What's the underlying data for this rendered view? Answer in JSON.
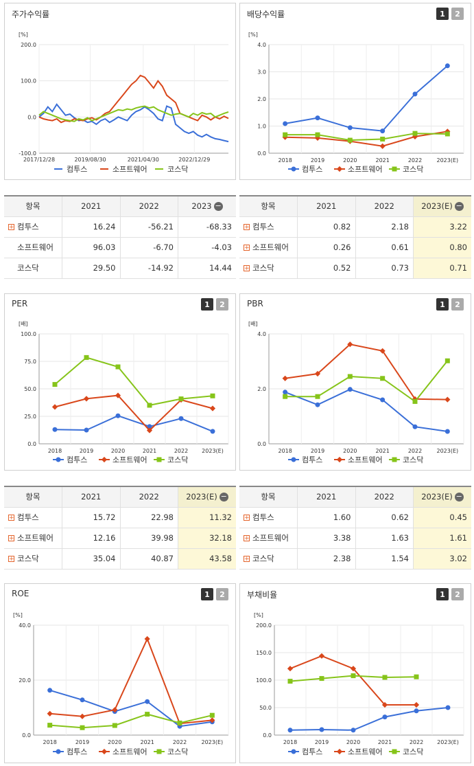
{
  "series_names": [
    "컴투스",
    "소프트웨어",
    "코스닥"
  ],
  "colors": {
    "컴투스": "#3a6fd8",
    "소프트웨어": "#d9471b",
    "코스닥": "#86c41a"
  },
  "panels": {
    "stock": {
      "title": "주가수익률",
      "unit": "[%]"
    },
    "dividend": {
      "title": "배당수익률",
      "unit": "[%]",
      "tabs": [
        "1",
        "2"
      ]
    },
    "per": {
      "title": "PER",
      "unit": "[배]",
      "tabs": [
        "1",
        "2"
      ]
    },
    "pbr": {
      "title": "PBR",
      "unit": "[배]",
      "tabs": [
        "1",
        "2"
      ]
    },
    "roe": {
      "title": "ROE",
      "unit": "[%]",
      "tabs": [
        "1",
        "2"
      ]
    },
    "debt": {
      "title": "부채비율",
      "unit": "[%]",
      "tabs": [
        "1",
        "2"
      ]
    }
  },
  "tables": {
    "stock": {
      "header": [
        "항목",
        "2021",
        "2022",
        "2023"
      ],
      "rows": [
        {
          "name": "컴투스",
          "plus": true,
          "values": [
            "16.24",
            "-56.21",
            "-68.33"
          ]
        },
        {
          "name": "소프트웨어",
          "plus": false,
          "values": [
            "96.03",
            "-6.70",
            "-4.03"
          ]
        },
        {
          "name": "코스닥",
          "plus": false,
          "values": [
            "29.50",
            "-14.92",
            "14.44"
          ]
        }
      ]
    },
    "dividend": {
      "header": [
        "항목",
        "2021",
        "2022",
        "2023(E)"
      ],
      "rows": [
        {
          "name": "컴투스",
          "plus": true,
          "values": [
            "0.82",
            "2.18",
            "3.22"
          ]
        },
        {
          "name": "소프트웨어",
          "plus": true,
          "values": [
            "0.26",
            "0.61",
            "0.80"
          ]
        },
        {
          "name": "코스닥",
          "plus": true,
          "values": [
            "0.52",
            "0.73",
            "0.71"
          ]
        }
      ]
    },
    "per": {
      "header": [
        "항목",
        "2021",
        "2022",
        "2023(E)"
      ],
      "rows": [
        {
          "name": "컴투스",
          "plus": true,
          "values": [
            "15.72",
            "22.98",
            "11.32"
          ]
        },
        {
          "name": "소프트웨어",
          "plus": true,
          "values": [
            "12.16",
            "39.98",
            "32.18"
          ]
        },
        {
          "name": "코스닥",
          "plus": true,
          "values": [
            "35.04",
            "40.87",
            "43.58"
          ]
        }
      ]
    },
    "pbr": {
      "header": [
        "항목",
        "2021",
        "2022",
        "2023(E)"
      ],
      "rows": [
        {
          "name": "컴투스",
          "plus": true,
          "values": [
            "1.60",
            "0.62",
            "0.45"
          ]
        },
        {
          "name": "소프트웨어",
          "plus": true,
          "values": [
            "3.38",
            "1.63",
            "1.61"
          ]
        },
        {
          "name": "코스닥",
          "plus": true,
          "values": [
            "2.38",
            "1.54",
            "3.02"
          ]
        }
      ]
    }
  },
  "chart_data": [
    {
      "id": "stock",
      "type": "line",
      "xticks": [
        "2017/12/28",
        "2019/08/30",
        "2021/04/30",
        "2022/12/29"
      ],
      "ylim": [
        -100,
        200
      ],
      "yticks": [
        "-100.0",
        "0.0",
        "100.0",
        "200.0"
      ],
      "series": [
        {
          "name": "컴투스",
          "values": [
            0,
            10,
            28,
            15,
            35,
            20,
            5,
            8,
            -2,
            -10,
            -8,
            -15,
            -12,
            -20,
            -10,
            -5,
            -15,
            -8,
            0,
            -5,
            -10,
            5,
            15,
            20,
            28,
            20,
            10,
            -5,
            -10,
            30,
            25,
            -20,
            -30,
            -40,
            -45,
            -40,
            -50,
            -55,
            -48,
            -55,
            -60,
            -62,
            -65,
            -68
          ]
        },
        {
          "name": "소프트웨어",
          "values": [
            0,
            -5,
            -8,
            -10,
            -5,
            -15,
            -10,
            -12,
            -5,
            -8,
            -10,
            -5,
            -2,
            -8,
            0,
            10,
            15,
            30,
            45,
            60,
            75,
            90,
            100,
            115,
            110,
            95,
            80,
            100,
            85,
            60,
            50,
            40,
            10,
            5,
            0,
            -5,
            -10,
            5,
            0,
            -8,
            0,
            -5,
            2,
            -4
          ]
        },
        {
          "name": "코스닥",
          "values": [
            5,
            15,
            10,
            5,
            0,
            -5,
            -8,
            -10,
            -12,
            -5,
            -8,
            -2,
            -10,
            -5,
            0,
            5,
            10,
            15,
            20,
            18,
            22,
            20,
            25,
            28,
            30,
            25,
            28,
            20,
            15,
            10,
            5,
            8,
            10,
            5,
            0,
            10,
            5,
            12,
            8,
            10,
            0,
            5,
            10,
            14
          ]
        }
      ]
    },
    {
      "id": "dividend",
      "type": "line",
      "categories": [
        "2018",
        "2019",
        "2020",
        "2021",
        "2022",
        "2023(E)"
      ],
      "ylim": [
        0,
        4
      ],
      "yticks": [
        "0.0",
        "1.0",
        "2.0",
        "3.0",
        "4.0"
      ],
      "series": [
        {
          "name": "컴투스",
          "values": [
            1.09,
            1.3,
            0.94,
            0.82,
            2.18,
            3.22
          ]
        },
        {
          "name": "소프트웨어",
          "values": [
            0.59,
            0.56,
            0.44,
            0.26,
            0.61,
            0.8
          ]
        },
        {
          "name": "코스닥",
          "values": [
            0.68,
            0.68,
            0.48,
            0.52,
            0.73,
            0.71
          ]
        }
      ]
    },
    {
      "id": "per",
      "type": "line",
      "categories": [
        "2018",
        "2019",
        "2020",
        "2021",
        "2022",
        "2023(E)"
      ],
      "ylim": [
        0,
        100
      ],
      "yticks": [
        "0.0",
        "25.0",
        "50.0",
        "75.0",
        "100.0"
      ],
      "series": [
        {
          "name": "컴투스",
          "values": [
            13.0,
            12.5,
            25.5,
            15.72,
            22.98,
            11.32
          ]
        },
        {
          "name": "소프트웨어",
          "values": [
            33.5,
            41.0,
            44.0,
            12.16,
            39.98,
            32.18
          ]
        },
        {
          "name": "코스닥",
          "values": [
            54.0,
            78.5,
            70.0,
            35.04,
            40.87,
            43.58
          ]
        }
      ]
    },
    {
      "id": "pbr",
      "type": "line",
      "categories": [
        "2018",
        "2019",
        "2020",
        "2021",
        "2022",
        "2023(E)"
      ],
      "ylim": [
        0,
        4
      ],
      "yticks": [
        "0.0",
        "2.0",
        "4.0"
      ],
      "series": [
        {
          "name": "컴투스",
          "values": [
            1.88,
            1.42,
            1.98,
            1.6,
            0.62,
            0.45
          ]
        },
        {
          "name": "소프트웨어",
          "values": [
            2.38,
            2.55,
            3.62,
            3.38,
            1.63,
            1.61
          ]
        },
        {
          "name": "코스닥",
          "values": [
            1.72,
            1.72,
            2.45,
            2.38,
            1.54,
            3.02
          ]
        }
      ]
    },
    {
      "id": "roe",
      "type": "line",
      "categories": [
        "2018",
        "2019",
        "2020",
        "2021",
        "2022",
        "2023(E)"
      ],
      "ylim": [
        0,
        40
      ],
      "yticks": [
        "0.0",
        "20.0",
        "40.0"
      ],
      "series": [
        {
          "name": "컴투스",
          "values": [
            16.3,
            12.8,
            8.6,
            12.2,
            3.2,
            4.8
          ]
        },
        {
          "name": "소프트웨어",
          "values": [
            7.8,
            6.8,
            9.2,
            35.0,
            4.2,
            5.4
          ]
        },
        {
          "name": "코스닥",
          "values": [
            3.6,
            2.7,
            3.5,
            7.6,
            4.4,
            7.2
          ]
        }
      ]
    },
    {
      "id": "debt",
      "type": "line",
      "categories": [
        "2018",
        "2019",
        "2020",
        "2021",
        "2022",
        "2023(E)"
      ],
      "ylim": [
        0,
        200
      ],
      "yticks": [
        "0.0",
        "50.0",
        "100.0",
        "150.0",
        "200.0"
      ],
      "series": [
        {
          "name": "컴투스",
          "values": [
            9,
            10,
            9,
            33,
            44,
            50
          ]
        },
        {
          "name": "소프트웨어",
          "values": [
            121,
            144,
            121,
            55,
            55,
            null
          ]
        },
        {
          "name": "코스닥",
          "values": [
            98,
            103,
            108,
            105,
            106,
            null
          ]
        }
      ]
    }
  ]
}
